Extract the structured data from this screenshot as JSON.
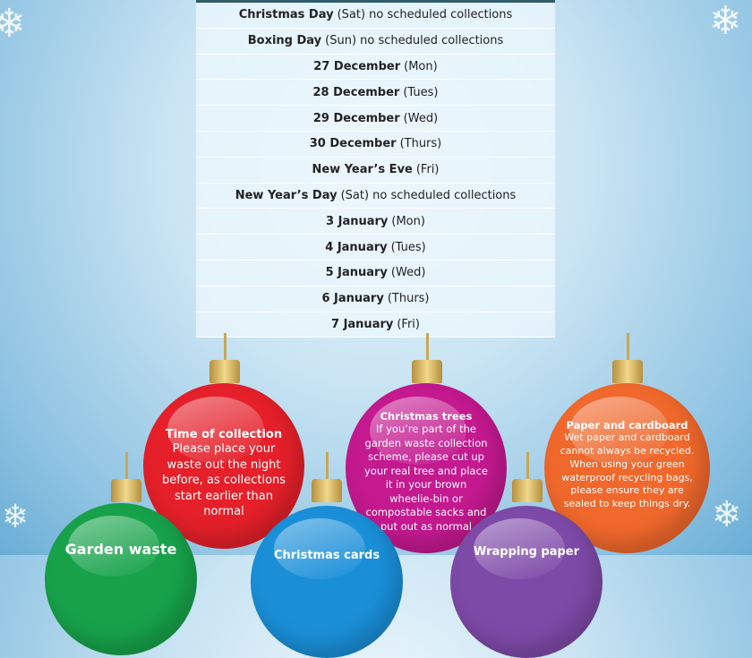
{
  "schedule": [
    {
      "bold": "Christmas Day",
      "rest": "(Sat) no scheduled collections"
    },
    {
      "bold": "Boxing Day",
      "rest": "(Sun) no scheduled collections"
    },
    {
      "bold": "27 December",
      "rest": "(Mon)"
    },
    {
      "bold": "28 December",
      "rest": "(Tues)"
    },
    {
      "bold": "29 December",
      "rest": "(Wed)"
    },
    {
      "bold": "30 December",
      "rest": "(Thurs)"
    },
    {
      "bold": "New Year’s Eve",
      "rest": "(Fri)"
    },
    {
      "bold": "New Year’s Day",
      "rest": "(Sat) no scheduled collections"
    },
    {
      "bold": "3 January",
      "rest": "(Mon)"
    },
    {
      "bold": "4 January",
      "rest": "(Tues)"
    },
    {
      "bold": "5 January",
      "rest": "(Wed)"
    },
    {
      "bold": "6 January",
      "rest": "(Thurs)"
    },
    {
      "bold": "7 January",
      "rest": "(Fri)"
    }
  ],
  "ornaments": {
    "time": {
      "title": "Time of collection",
      "text": "Please place your waste out the night before, as collections start earlier than normal",
      "color": "#e5202a"
    },
    "trees": {
      "title": "Christmas trees",
      "text": "If you’re part of the garden waste collection scheme, please cut up your real tree and place it in your brown wheelie-bin or compostable sacks and put out as normal",
      "color": "#c4198f"
    },
    "paper": {
      "title": "Paper and cardboard",
      "text": "Wet paper and cardboard cannot always be recycled. When using your green waterproof recycling bags, please ensure they are sealed to keep things dry.",
      "color": "#f0682c"
    },
    "garden": {
      "title": "Garden waste",
      "color": "#17a24a"
    },
    "cards": {
      "title": "Christmas cards",
      "color": "#1a8fd8"
    },
    "wrapping": {
      "title": "Wrapping paper",
      "color": "#7e4aa8"
    }
  }
}
